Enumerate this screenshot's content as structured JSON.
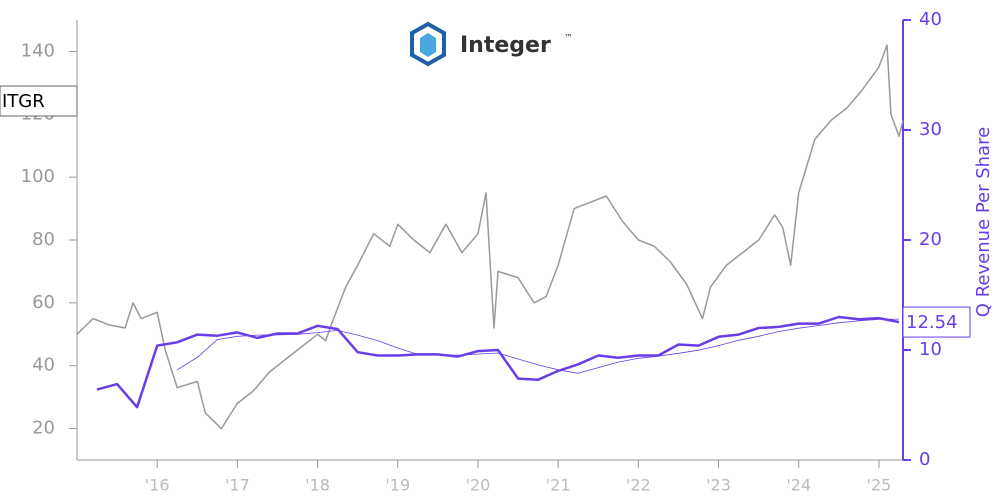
{
  "chart_data": {
    "type": "line",
    "ticker": "ITGR",
    "logo_text": "Integer",
    "logo_mark": "™",
    "y2label": "Q Revenue Per Share",
    "xlim": [
      2015,
      2025.3
    ],
    "xticks": [
      {
        "value": 2016,
        "label": "'16"
      },
      {
        "value": 2017,
        "label": "'17"
      },
      {
        "value": 2018,
        "label": "'18"
      },
      {
        "value": 2019,
        "label": "'19"
      },
      {
        "value": 2020,
        "label": "'20"
      },
      {
        "value": 2021,
        "label": "'21"
      },
      {
        "value": 2022,
        "label": "'22"
      },
      {
        "value": 2023,
        "label": "'23"
      },
      {
        "value": 2024,
        "label": "'24"
      },
      {
        "value": 2025,
        "label": "'25"
      }
    ],
    "ylim": [
      10,
      150
    ],
    "yticks": [
      20,
      40,
      60,
      80,
      100,
      120,
      140
    ],
    "y2lim": [
      0,
      40
    ],
    "y2ticks": [
      0,
      10,
      20,
      30,
      40
    ],
    "series": [
      {
        "color": "#999999",
        "line_width": 1.5,
        "x": [
          2015.0,
          2015.2,
          2015.4,
          2015.6,
          2015.7,
          2015.8,
          2016.0,
          2016.1,
          2016.25,
          2016.5,
          2016.6,
          2016.8,
          2017.0,
          2017.2,
          2017.4,
          2017.6,
          2017.8,
          2018.0,
          2018.1,
          2018.2,
          2018.35,
          2018.5,
          2018.7,
          2018.9,
          2019.0,
          2019.2,
          2019.4,
          2019.6,
          2019.8,
          2020.0,
          2020.1,
          2020.2,
          2020.25,
          2020.5,
          2020.7,
          2020.85,
          2021.0,
          2021.2,
          2021.4,
          2021.6,
          2021.8,
          2022.0,
          2022.2,
          2022.4,
          2022.6,
          2022.8,
          2022.9,
          2023.1,
          2023.3,
          2023.5,
          2023.7,
          2023.8,
          2023.9,
          2024.0,
          2024.2,
          2024.4,
          2024.6,
          2024.8,
          2025.0,
          2025.1,
          2025.15,
          2025.25,
          2025.3
        ],
        "values": [
          50,
          55,
          53,
          52,
          60,
          55,
          57,
          45,
          33,
          35,
          25,
          20,
          28,
          32,
          38,
          42,
          46,
          50,
          48,
          55,
          65,
          72,
          82,
          78,
          85,
          80,
          76,
          85,
          76,
          82,
          95,
          52,
          70,
          68,
          60,
          62,
          72,
          90,
          92,
          94,
          86,
          80,
          78,
          73,
          66,
          55,
          65,
          72,
          76,
          80,
          88,
          84,
          72,
          95,
          112,
          118,
          122,
          128,
          135,
          142,
          120,
          113,
          118
        ]
      },
      {
        "color": "#6a3de8",
        "line_width": 2.5,
        "axis": "y2",
        "x": [
          2015.25,
          2015.5,
          2015.75,
          2016.0,
          2016.25,
          2016.5,
          2016.75,
          2017.0,
          2017.25,
          2017.5,
          2017.75,
          2018.0,
          2018.25,
          2018.5,
          2018.75,
          2019.0,
          2019.25,
          2019.5,
          2019.75,
          2020.0,
          2020.25,
          2020.5,
          2020.75,
          2021.0,
          2021.25,
          2021.5,
          2021.75,
          2022.0,
          2022.25,
          2022.5,
          2022.75,
          2023.0,
          2023.25,
          2023.5,
          2023.75,
          2024.0,
          2024.25,
          2024.5,
          2024.75,
          2025.0,
          2025.25
        ],
        "values": [
          6.4,
          6.9,
          4.8,
          10.4,
          10.7,
          11.4,
          11.3,
          11.6,
          11.1,
          11.5,
          11.5,
          12.2,
          11.9,
          9.8,
          9.5,
          9.5,
          9.6,
          9.6,
          9.4,
          9.9,
          10.0,
          7.4,
          7.3,
          8.1,
          8.7,
          9.5,
          9.3,
          9.5,
          9.5,
          10.5,
          10.4,
          11.2,
          11.4,
          12.0,
          12.1,
          12.4,
          12.4,
          13.0,
          12.8,
          12.9,
          12.54
        ]
      },
      {
        "color": "#6a3de8",
        "line_width": 0.8,
        "axis": "y2",
        "x": [
          2015.25,
          2015.5,
          2015.75,
          2016.0,
          2016.25,
          2016.5,
          2016.75,
          2017.0,
          2017.25,
          2017.5,
          2017.75,
          2018.0,
          2018.25,
          2018.5,
          2018.75,
          2019.0,
          2019.25,
          2019.5,
          2019.75,
          2020.0,
          2020.25,
          2020.5,
          2020.75,
          2021.0,
          2021.25,
          2021.5,
          2021.75,
          2022.0,
          2022.25,
          2022.5,
          2022.75,
          2023.0,
          2023.25,
          2023.5,
          2023.75,
          2024.0,
          2024.25,
          2024.5,
          2024.75,
          2025.0,
          2025.25
        ],
        "values": [
          null,
          null,
          null,
          null,
          8.2,
          9.33,
          10.95,
          11.25,
          11.35,
          11.38,
          11.43,
          11.58,
          11.78,
          11.35,
          10.85,
          10.18,
          9.6,
          9.55,
          9.53,
          9.63,
          9.73,
          9.18,
          8.65,
          8.2,
          7.88,
          8.4,
          8.9,
          9.25,
          9.45,
          9.7,
          9.98,
          10.4,
          10.88,
          11.25,
          11.68,
          11.98,
          12.23,
          12.48,
          12.65,
          12.78,
          12.81
        ]
      }
    ]
  }
}
